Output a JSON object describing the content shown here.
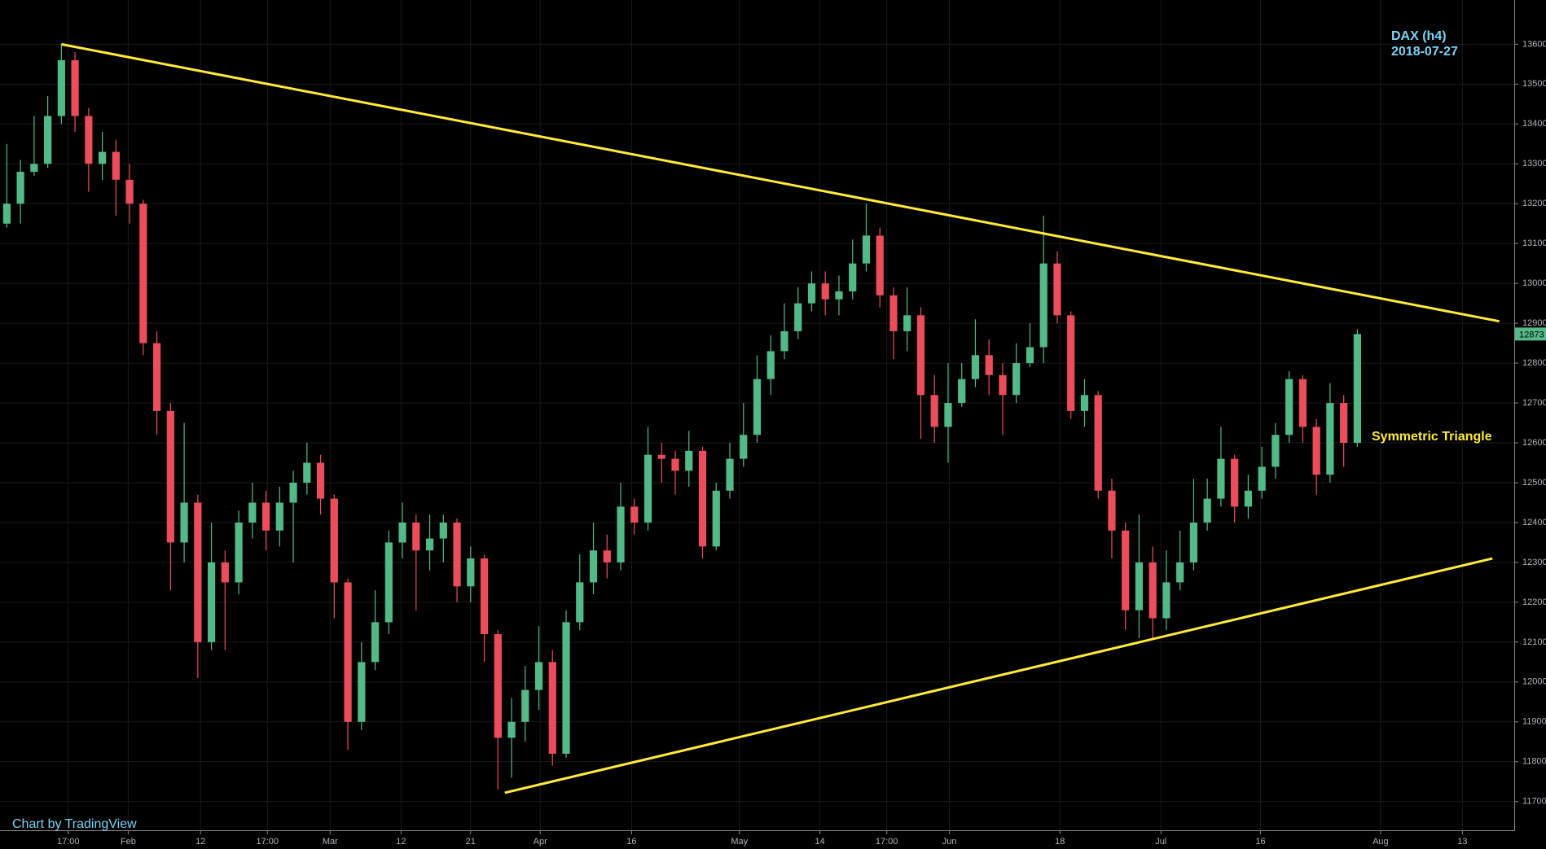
{
  "chart_data": {
    "type": "candlestick",
    "title": "DAX (h4)",
    "subtitle": "2018-07-27",
    "annotations": [
      "Symmetric Triangle"
    ],
    "watermark": "Chart by TradingView",
    "up_color": "#53b987",
    "down_color": "#eb4d5c",
    "open": [
      13150,
      13200,
      13280,
      13300,
      13420,
      13560,
      13420,
      13300,
      13330,
      13260,
      13200,
      12850,
      12680,
      12350,
      12450,
      12100,
      12300,
      12250,
      12400,
      12450,
      12380,
      12450,
      12500,
      12550,
      12460,
      12250,
      11900,
      12050,
      12150,
      12350,
      12400,
      12330,
      12360,
      12400,
      12240,
      12310,
      12120,
      11860,
      11900,
      11980,
      12050,
      11820,
      12150,
      12250,
      12330,
      12300,
      12440,
      12400,
      12570,
      12560,
      12530,
      12580,
      12340,
      12480,
      12560,
      12620,
      12760,
      12830,
      12880,
      12950,
      13000,
      12960,
      12980,
      13050,
      13120,
      12970,
      12880,
      12920,
      12720,
      12640,
      12700,
      12760,
      12820,
      12770,
      12720,
      12800,
      12840,
      13050,
      12920,
      12680,
      12720,
      12480,
      12380,
      12180,
      12300,
      12160,
      12250,
      12300,
      12400,
      12460,
      12560,
      12440,
      12480,
      12540,
      12620,
      12760,
      12640,
      12520,
      12700,
      12600
    ],
    "high": [
      13350,
      13310,
      13420,
      13470,
      13600,
      13580,
      13440,
      13380,
      13360,
      13300,
      13210,
      12880,
      12700,
      12650,
      12470,
      12400,
      12330,
      12430,
      12500,
      12480,
      12490,
      12530,
      12600,
      12570,
      12470,
      12260,
      12100,
      12230,
      12380,
      12450,
      12420,
      12420,
      12420,
      12410,
      12340,
      12320,
      12130,
      11960,
      12040,
      12140,
      12080,
      12180,
      12320,
      12400,
      12370,
      12500,
      12460,
      12640,
      12600,
      12580,
      12630,
      12590,
      12500,
      12600,
      12700,
      12820,
      12870,
      12950,
      12990,
      13030,
      13030,
      13020,
      13110,
      13200,
      13140,
      12990,
      12990,
      12940,
      12770,
      12800,
      12800,
      12910,
      12860,
      12800,
      12850,
      12900,
      13170,
      13080,
      12930,
      12760,
      12730,
      12510,
      12400,
      12420,
      12340,
      12330,
      12380,
      12510,
      12510,
      12640,
      12570,
      12520,
      12590,
      12650,
      12780,
      12770,
      12660,
      12750,
      12720,
      12885
    ],
    "low": [
      13140,
      13150,
      13270,
      13290,
      13400,
      13380,
      13230,
      13260,
      13170,
      13150,
      12820,
      12620,
      12230,
      12300,
      12010,
      12080,
      12080,
      12220,
      12360,
      12330,
      12340,
      12300,
      12470,
      12420,
      12160,
      11830,
      11880,
      12030,
      12120,
      12310,
      12180,
      12280,
      12300,
      12200,
      12200,
      12050,
      11730,
      11760,
      11850,
      11930,
      11790,
      11810,
      12130,
      12220,
      12260,
      12280,
      12370,
      12380,
      12500,
      12470,
      12490,
      12310,
      12330,
      12460,
      12540,
      12600,
      12720,
      12810,
      12860,
      12930,
      12920,
      12920,
      12960,
      13030,
      12940,
      12810,
      12830,
      12610,
      12600,
      12550,
      12690,
      12740,
      12720,
      12620,
      12700,
      12790,
      12800,
      12900,
      12660,
      12640,
      12460,
      12310,
      12130,
      12110,
      12105,
      12130,
      12230,
      12280,
      12380,
      12440,
      12400,
      12410,
      12460,
      12510,
      12600,
      12600,
      12470,
      12500,
      12540,
      12590
    ],
    "close": [
      13200,
      13280,
      13300,
      13420,
      13560,
      13420,
      13300,
      13330,
      13260,
      13200,
      12850,
      12680,
      12350,
      12450,
      12100,
      12300,
      12250,
      12400,
      12450,
      12380,
      12450,
      12500,
      12550,
      12460,
      12250,
      11900,
      12050,
      12150,
      12350,
      12400,
      12330,
      12360,
      12400,
      12240,
      12310,
      12120,
      11860,
      11900,
      11980,
      12050,
      11820,
      12150,
      12250,
      12330,
      12300,
      12440,
      12400,
      12570,
      12560,
      12530,
      12580,
      12340,
      12480,
      12560,
      12620,
      12760,
      12830,
      12880,
      12950,
      13000,
      12960,
      12980,
      13050,
      13120,
      12970,
      12880,
      12920,
      12720,
      12640,
      12700,
      12760,
      12820,
      12770,
      12720,
      12800,
      12840,
      13050,
      12920,
      12680,
      12720,
      12480,
      12380,
      12180,
      12300,
      12160,
      12250,
      12300,
      12400,
      12460,
      12560,
      12440,
      12480,
      12540,
      12620,
      12760,
      12640,
      12520,
      12700,
      12600,
      12873
    ],
    "trendlines": [
      {
        "color": "#ffeb3b",
        "x": [
          4,
          109.4
        ],
        "y": [
          13600,
          12905
        ]
      },
      {
        "color": "#ffeb3b",
        "x": [
          36.5,
          108.9
        ],
        "y": [
          11722,
          12310
        ]
      }
    ],
    "xlim": [
      -0.5,
      110.5
    ],
    "ylim": [
      11628,
      13711
    ],
    "xticks": [
      {
        "value": 4.5,
        "label": "17:00"
      },
      {
        "value": 8.9,
        "label": "Feb"
      },
      {
        "value": 14.2,
        "label": "12"
      },
      {
        "value": 19.1,
        "label": "17:00"
      },
      {
        "value": 23.7,
        "label": "Mar"
      },
      {
        "value": 28.9,
        "label": "12"
      },
      {
        "value": 34,
        "label": "21"
      },
      {
        "value": 39.1,
        "label": "Apr"
      },
      {
        "value": 45.8,
        "label": "16"
      },
      {
        "value": 53.7,
        "label": "May"
      },
      {
        "value": 59.6,
        "label": "14"
      },
      {
        "value": 64.5,
        "label": "17:00"
      },
      {
        "value": 69.1,
        "label": "Jun"
      },
      {
        "value": 77.2,
        "label": "18"
      },
      {
        "value": 84.6,
        "label": "Jul"
      },
      {
        "value": 91.9,
        "label": "16"
      },
      {
        "value": 100.7,
        "label": "Aug"
      },
      {
        "value": 106.7,
        "label": "13"
      }
    ],
    "yticks": [
      11700,
      11800,
      11900,
      12000,
      12100,
      12200,
      12300,
      12400,
      12500,
      12600,
      12700,
      12800,
      12900,
      13000,
      13100,
      13200,
      13300,
      13400,
      13500,
      13600
    ],
    "grid": true
  }
}
